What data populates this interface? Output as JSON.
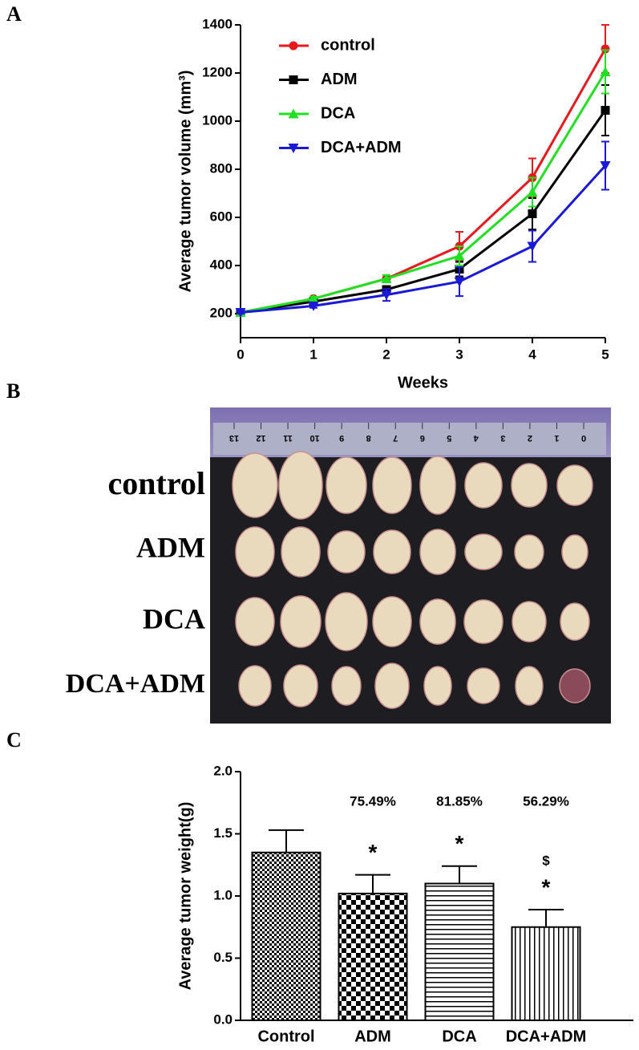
{
  "chart_data": [
    {
      "type": "line",
      "panel": "A",
      "x_label": "Weeks",
      "y_label": "Average tumor volume (mm³)",
      "x": [
        0,
        1,
        2,
        3,
        4,
        5
      ],
      "xlim": [
        0,
        5
      ],
      "xticks": [
        0,
        1,
        2,
        3,
        4,
        5
      ],
      "ylim": [
        100,
        1400
      ],
      "yticks": [
        200,
        400,
        600,
        800,
        1000,
        1200,
        1400
      ],
      "series": [
        {
          "name": "control",
          "color": "#e8191c",
          "marker": "circle",
          "values": [
            205,
            262,
            345,
            480,
            765,
            1300
          ],
          "errors": [
            5,
            8,
            15,
            60,
            80,
            100
          ]
        },
        {
          "name": "ADM",
          "color": "#000000",
          "marker": "square",
          "values": [
            205,
            250,
            300,
            385,
            615,
            1045
          ],
          "errors": [
            5,
            8,
            15,
            30,
            65,
            105
          ]
        },
        {
          "name": "DCA",
          "color": "#21e021",
          "marker": "triangle-up",
          "values": [
            205,
            262,
            345,
            440,
            705,
            1205
          ],
          "errors": [
            5,
            8,
            15,
            40,
            60,
            90
          ]
        },
        {
          "name": "DCA+ADM",
          "color": "#1a1ad6",
          "marker": "triangle-down",
          "values": [
            205,
            232,
            278,
            333,
            480,
            815
          ],
          "errors": [
            5,
            8,
            25,
            60,
            65,
            100
          ]
        }
      ]
    },
    {
      "type": "bar",
      "panel": "C",
      "y_label": "Average tumor weight(g)",
      "categories": [
        "Control",
        "ADM",
        "DCA",
        "DCA+ADM"
      ],
      "values": [
        1.35,
        1.02,
        1.1,
        0.75
      ],
      "errors": [
        0.18,
        0.15,
        0.14,
        0.14
      ],
      "patterns": [
        "fine-checker",
        "checker",
        "horizontal",
        "vertical"
      ],
      "annotations": [
        [],
        [
          "75.49%",
          "*"
        ],
        [
          "81.85%",
          "*"
        ],
        [
          "56.29%",
          "$",
          "*"
        ]
      ],
      "ylim": [
        0,
        2
      ],
      "yticks": [
        {
          "value": 0,
          "label": "0.0"
        },
        0.5,
        {
          "value": 1,
          "label": "1.0"
        },
        1.5,
        {
          "value": 2,
          "label": "2.0"
        }
      ]
    }
  ],
  "photo": {
    "panel": "B",
    "row_labels": [
      "control",
      "ADM",
      "DCA",
      "DCA+ADM"
    ],
    "ruler_labels": [
      "13",
      "12",
      "11",
      "10",
      "9",
      "8",
      "7",
      "6",
      "5",
      "4",
      "3",
      "2",
      "1",
      "0"
    ]
  }
}
